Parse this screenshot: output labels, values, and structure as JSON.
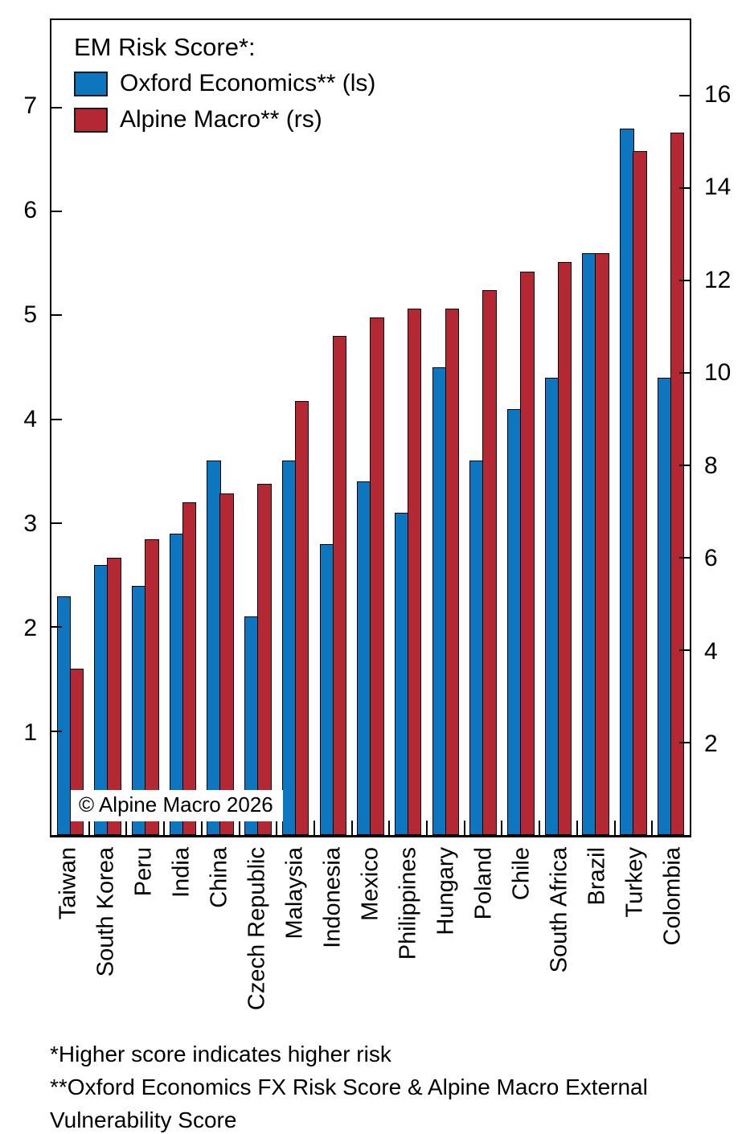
{
  "legend": {
    "title": "EM Risk Score*:",
    "series": [
      {
        "label": "Oxford Economics** (ls)",
        "color": "#0d76be"
      },
      {
        "label": "Alpine Macro** (rs)",
        "color": "#b42834"
      }
    ]
  },
  "watermark": "© Alpine Macro 2026",
  "footnotes": [
    "*Higher score indicates higher risk",
    "**Oxford Economics FX Risk Score & Alpine Macro External Vulnerability Score"
  ],
  "chart_data": {
    "type": "bar",
    "title": "EM Risk Score*:",
    "categories": [
      "Taiwan",
      "South Korea",
      "Peru",
      "India",
      "China",
      "Czech Republic",
      "Malaysia",
      "Indonesia",
      "Mexico",
      "Philippines",
      "Hungary",
      "Poland",
      "Chile",
      "South Africa",
      "Brazil",
      "Turkey",
      "Colombia"
    ],
    "series": [
      {
        "name": "Oxford Economics** (ls)",
        "axis": "left",
        "color": "#0d76be",
        "values": [
          2.3,
          2.6,
          2.4,
          2.9,
          3.6,
          2.1,
          3.6,
          2.8,
          3.4,
          3.1,
          4.5,
          3.6,
          4.1,
          4.4,
          5.6,
          6.8,
          4.4
        ]
      },
      {
        "name": "Alpine Macro** (rs)",
        "axis": "right",
        "color": "#b42834",
        "values": [
          3.6,
          6.0,
          6.4,
          7.2,
          7.4,
          7.6,
          9.4,
          10.8,
          11.2,
          11.4,
          11.4,
          11.8,
          12.2,
          12.4,
          12.6,
          14.8,
          15.2
        ]
      }
    ],
    "left_axis": {
      "ticks": [
        1,
        2,
        3,
        4,
        5,
        6,
        7
      ],
      "min": 0,
      "max": 7.84
    },
    "right_axis": {
      "ticks": [
        2,
        4,
        6,
        8,
        10,
        12,
        14,
        16
      ],
      "min": 0,
      "max": 17.64
    },
    "grid": false,
    "legend_position": "top-left",
    "bar_edge_color": "#000000"
  }
}
